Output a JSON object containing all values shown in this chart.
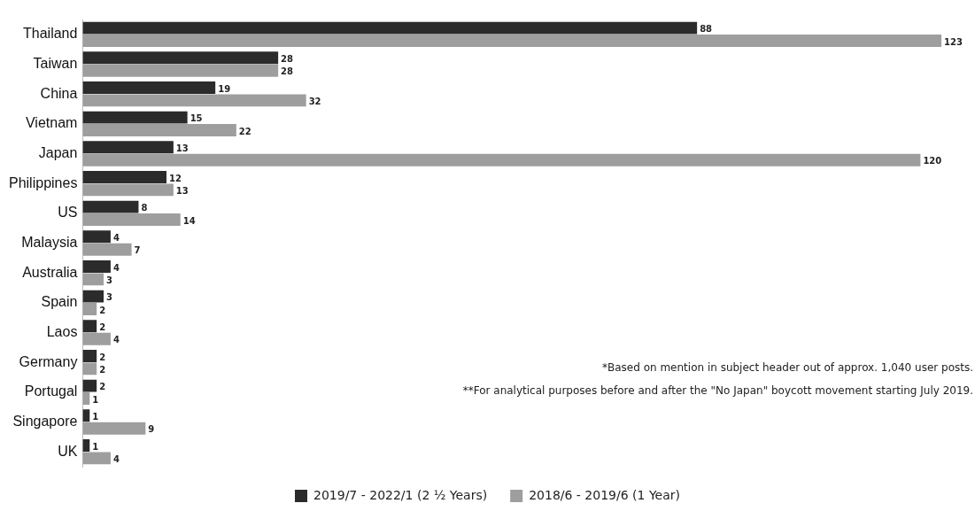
{
  "chart_data": {
    "type": "bar",
    "orientation": "horizontal",
    "categories": [
      "Thailand",
      "Taiwan",
      "China",
      "Vietnam",
      "Japan",
      "Philippines",
      "US",
      "Malaysia",
      "Australia",
      "Spain",
      "Laos",
      "Germany",
      "Portugal",
      "Singapore",
      "UK"
    ],
    "series": [
      {
        "name": "2019/7 - 2022/1 (2 ½ Years)",
        "color": "#2b2b2b",
        "values": [
          88,
          28,
          19,
          15,
          13,
          12,
          8,
          4,
          4,
          3,
          2,
          2,
          2,
          1,
          1
        ]
      },
      {
        "name": "2018/6 - 2019/6 (1 Year)",
        "color": "#9e9e9e",
        "values": [
          123,
          28,
          32,
          22,
          120,
          13,
          14,
          7,
          3,
          2,
          4,
          2,
          1,
          9,
          4
        ]
      }
    ],
    "data_labels": true,
    "legend": "bottom",
    "annotations": [
      "*Based on mention in subject header out of approx. 1,040 user posts.",
      "**For analytical purposes before and after the \"No Japan\" boycott movement starting July 2019."
    ]
  }
}
